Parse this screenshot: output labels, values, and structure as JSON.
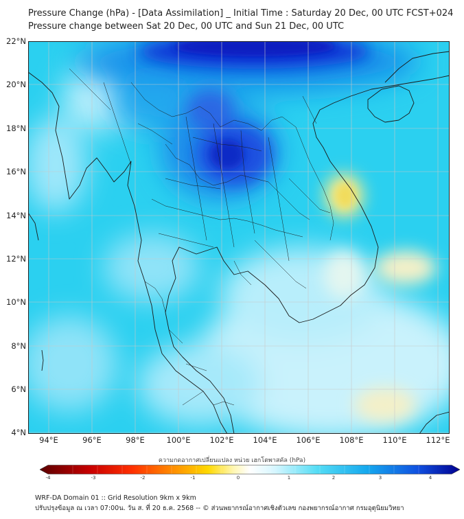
{
  "title_line1": "Pressure Change (hPa) - [Data Assimilation] _ Initial Time : Saturday 20 Dec, 00 UTC FCST+024",
  "title_line2": "Pressure change between Sat 20 Dec, 00 UTC and Sun 21 Dec, 00 UTC",
  "map": {
    "lat_labels": [
      "22°N",
      "20°N",
      "18°N",
      "16°N",
      "14°N",
      "12°N",
      "10°N",
      "8°N",
      "6°N",
      "4°N"
    ],
    "lon_labels": [
      "94°E",
      "96°E",
      "98°E",
      "100°E",
      "102°E",
      "104°E",
      "106°E",
      "108°E",
      "110°E",
      "112°E"
    ],
    "lat_range": [
      4,
      22.2
    ],
    "lon_range": [
      93,
      112.5
    ],
    "colors": {
      "background": "#2bd0f0",
      "ocean_light": "#bdeffb",
      "strong_fall": "#1f4fe0",
      "deep_fall": "#0a1fc8",
      "rise": "#f5e67a"
    }
  },
  "colorbar": {
    "title": "ความกดอากาศเปลี่ยนแปลง หน่วย เฮกโตพาสคัล (hPa)",
    "tick_labels": [
      "-4",
      "-3",
      "-2",
      "-1",
      "0",
      "1",
      "2",
      "3",
      "4"
    ],
    "range": [
      -4,
      4
    ],
    "colors": [
      "#5a0000",
      "#c80000",
      "#ff3000",
      "#ff9000",
      "#ffd800",
      "#fff6b0",
      "#ffffff",
      "#d6f6ff",
      "#55ddf5",
      "#15a8ee",
      "#1050e0",
      "#000090"
    ]
  },
  "footer_line1": "WRF-DA Domain 01 :: Grid Resolution 9km x 9km",
  "footer_line2": "ปรับปรุงข้อมูล ณ เวลา 07:00น. วัน ส. ที่ 20 ธ.ค. 2568 -- © ส่วนพยากรณ์อากาศเชิงตัวเลข กองพยากรณ์อากาศ กรมอุตุนิยมวิทยา"
}
